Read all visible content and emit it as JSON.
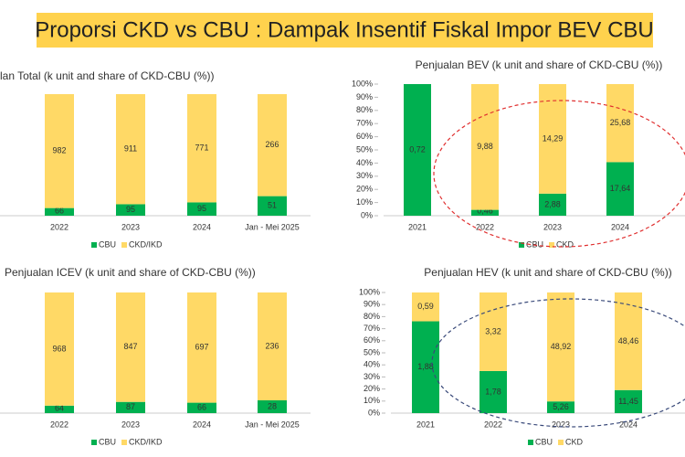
{
  "title": "Proporsi CKD vs CBU : Dampak Insentif Fiskal  Impor BEV CBU",
  "chart_data": [
    {
      "type": "stacked-share-bar",
      "title": "lan Total (k unit and share of CKD-CBU (%))",
      "categories": [
        "2022",
        "2023",
        "2024",
        "Jan - Mei 2025"
      ],
      "series": [
        {
          "name": "CBU",
          "color": "#00b050",
          "values": [
            66,
            95,
            95,
            51
          ]
        },
        {
          "name": "CKD/IKD",
          "color": "#ffd966",
          "values": [
            982,
            911,
            771,
            266
          ]
        }
      ]
    },
    {
      "type": "stacked-share-bar",
      "title": "Penjualan BEV (k unit and  share of CKD-CBU (%))",
      "categories": [
        "2021",
        "2022",
        "2023",
        "2024"
      ],
      "series": [
        {
          "name": "CBU",
          "color": "#00b050",
          "values": [
            0.72,
            0.46,
            2.88,
            17.64
          ],
          "value_labels": [
            "0,72",
            "0,46",
            "2,88",
            "17,64"
          ]
        },
        {
          "name": "CKD",
          "color": "#ffd966",
          "values": [
            null,
            9.88,
            14.29,
            25.68
          ],
          "value_labels": [
            null,
            "9,88",
            "14,29",
            "25,68"
          ]
        }
      ],
      "ylim": [
        0,
        100
      ],
      "yticks": [
        {
          "value": 0,
          "label": "0%"
        },
        {
          "value": 10,
          "label": "10%"
        },
        {
          "value": 20,
          "label": "20%"
        },
        {
          "value": 30,
          "label": "30%"
        },
        {
          "value": 40,
          "label": "40%"
        },
        {
          "value": 50,
          "label": "50%"
        },
        {
          "value": 60,
          "label": "60%"
        },
        {
          "value": 70,
          "label": "70%"
        },
        {
          "value": 80,
          "label": "80%"
        },
        {
          "value": 90,
          "label": "90%"
        },
        {
          "value": 100,
          "label": "100%"
        }
      ]
    },
    {
      "type": "stacked-share-bar",
      "title": "Penjualan ICEV (k unit and share of CKD-CBU (%))",
      "categories": [
        "2022",
        "2023",
        "2024",
        "Jan - Mei 2025"
      ],
      "series": [
        {
          "name": "CBU",
          "color": "#00b050",
          "values": [
            64,
            87,
            66,
            28
          ]
        },
        {
          "name": "CKD/IKD",
          "color": "#ffd966",
          "values": [
            968,
            847,
            697,
            236
          ]
        }
      ]
    },
    {
      "type": "stacked-share-bar",
      "title": "Penjualan HEV (k unit and share of CKD-CBU (%))",
      "categories": [
        "2021",
        "2022",
        "2023",
        "2024"
      ],
      "series": [
        {
          "name": "CBU",
          "color": "#00b050",
          "values": [
            1.88,
            1.78,
            5.26,
            11.45
          ],
          "value_labels": [
            "1,88",
            "1,78",
            "5,26",
            "11,45"
          ]
        },
        {
          "name": "CKD",
          "color": "#ffd966",
          "values": [
            0.59,
            3.32,
            48.92,
            48.46
          ],
          "value_labels": [
            "0,59",
            "3,32",
            "48,92",
            "48,46"
          ]
        }
      ],
      "ylim": [
        0,
        100
      ],
      "yticks": [
        {
          "value": 0,
          "label": "0%"
        },
        {
          "value": 10,
          "label": "10%"
        },
        {
          "value": 20,
          "label": "20%"
        },
        {
          "value": 30,
          "label": "30%"
        },
        {
          "value": 40,
          "label": "40%"
        },
        {
          "value": 50,
          "label": "50%"
        },
        {
          "value": 60,
          "label": "60%"
        },
        {
          "value": 70,
          "label": "70%"
        },
        {
          "value": 80,
          "label": "80%"
        },
        {
          "value": 90,
          "label": "90%"
        },
        {
          "value": 100,
          "label": "100%"
        }
      ]
    }
  ]
}
